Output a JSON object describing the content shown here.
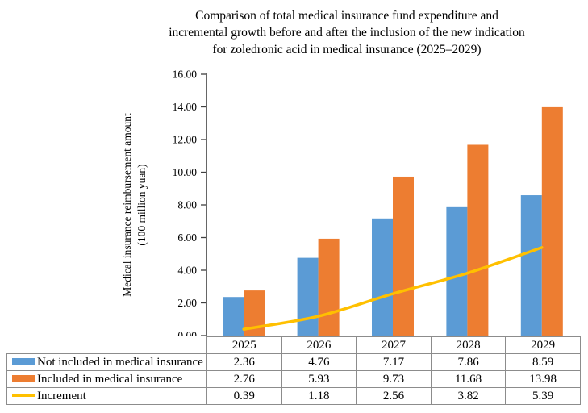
{
  "figure": {
    "title_lines": [
      "Comparison of total medical insurance fund expenditure and",
      "incremental growth before and after the inclusion of the new indication",
      "for zoledronic acid in medical insurance (2025–2029)"
    ]
  },
  "chart_data": {
    "type": "bar",
    "subtype": "clustered-bars-with-line-overlay-and-data-table",
    "title": "Comparison of total medical insurance fund expenditure and incremental growth before and after the inclusion of the new indication for zoledronic acid in medical insurance (2025–2029)",
    "categories": [
      "2025",
      "2026",
      "2027",
      "2028",
      "2029"
    ],
    "series": [
      {
        "name": "Not included in medical insurance",
        "type": "bar",
        "color": "#5B9BD5",
        "values": [
          2.36,
          4.76,
          7.17,
          7.86,
          8.59
        ]
      },
      {
        "name": "Included in medical insurance",
        "type": "bar",
        "color": "#ED7D31",
        "values": [
          2.76,
          5.93,
          9.73,
          11.68,
          13.98
        ]
      },
      {
        "name": "Increment",
        "type": "line",
        "color": "#FFC000",
        "values": [
          0.39,
          1.18,
          2.56,
          3.82,
          5.39
        ]
      }
    ],
    "ylabel_lines": [
      "Medical insurance reimbursement amount",
      "(100 million yuan)"
    ],
    "xlabel": "",
    "ylim": [
      0,
      16
    ],
    "ytick_step": 2,
    "ytick_labels": [
      "0.00",
      "2.00",
      "4.00",
      "6.00",
      "8.00",
      "10.00",
      "12.00",
      "14.00",
      "16.00"
    ],
    "value_decimals": 2,
    "grid": false,
    "legend_position": "data-table-left",
    "colors": {
      "axis": "#404040",
      "table_border": "#8c8c8c",
      "text": "#000000"
    }
  }
}
